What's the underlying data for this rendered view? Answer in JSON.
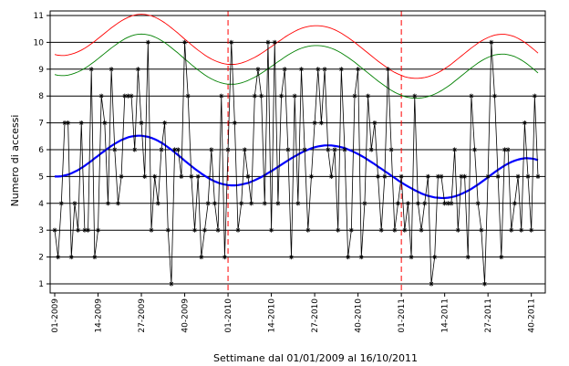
{
  "chart_data": {
    "type": "line",
    "xlabel": "Settimane dal 01/01/2009 al 16/10/2011",
    "ylabel": "Numero di accessi",
    "xlim": [
      1,
      146
    ],
    "ylim": [
      1,
      11
    ],
    "y_ticks": [
      1,
      2,
      3,
      4,
      5,
      6,
      7,
      8,
      9,
      10,
      11
    ],
    "grid": "horizontal",
    "x_ticks": [
      {
        "x": 1,
        "label": "01-2009"
      },
      {
        "x": 14,
        "label": "14-2009"
      },
      {
        "x": 27,
        "label": "27-2009"
      },
      {
        "x": 40,
        "label": "40-2009"
      },
      {
        "x": 53,
        "label": "01-2010"
      },
      {
        "x": 66,
        "label": "14-2010"
      },
      {
        "x": 79,
        "label": "27-2010"
      },
      {
        "x": 92,
        "label": "40-2010"
      },
      {
        "x": 105,
        "label": "01-2011"
      },
      {
        "x": 118,
        "label": "14-2011"
      },
      {
        "x": 131,
        "label": "27-2011"
      },
      {
        "x": 144,
        "label": "40-2011"
      }
    ],
    "year_separators": [
      53,
      105
    ],
    "series": [
      {
        "color": "#000000",
        "marker": "asterisk",
        "values": [
          3,
          2,
          4,
          7,
          7,
          2,
          4,
          3,
          7,
          3,
          3,
          9,
          2,
          3,
          8,
          7,
          4,
          9,
          6,
          4,
          5,
          8,
          8,
          8,
          6,
          9,
          7,
          5,
          10,
          3,
          5,
          4,
          6,
          7,
          3,
          1,
          6,
          6,
          5,
          10,
          8,
          5,
          3,
          5,
          2,
          3,
          4,
          6,
          4,
          3,
          8,
          2,
          6,
          10,
          7,
          3,
          4,
          6,
          5,
          4,
          8,
          9,
          8,
          4,
          10,
          3,
          10,
          4,
          8,
          9,
          6,
          2,
          8,
          4,
          9,
          6,
          3,
          5,
          7,
          9,
          7,
          9,
          6,
          5,
          6,
          3,
          9,
          6,
          2,
          3,
          8,
          9,
          2,
          4,
          8,
          6,
          7,
          5,
          3,
          5,
          9,
          6,
          3,
          4,
          5,
          3,
          4,
          2,
          8,
          4,
          3,
          4,
          5,
          1,
          2,
          5,
          5,
          4,
          4,
          4,
          6,
          3,
          5,
          5,
          2,
          8,
          6,
          4,
          3,
          1,
          5,
          10,
          8,
          5,
          2,
          6,
          6,
          3,
          4,
          5,
          3,
          7,
          5,
          3,
          8,
          5
        ]
      },
      {
        "color": "#0000ff",
        "values": [
          5.0,
          5.0,
          5.01,
          5.04,
          5.07,
          5.12,
          5.18,
          5.24,
          5.32,
          5.4,
          5.49,
          5.58,
          5.68,
          5.77,
          5.87,
          5.96,
          6.05,
          6.14,
          6.22,
          6.29,
          6.36,
          6.41,
          6.46,
          6.49,
          6.51,
          6.52,
          6.52,
          6.5,
          6.48,
          6.44,
          6.39,
          6.33,
          6.26,
          6.18,
          6.09,
          6.0,
          5.9,
          5.8,
          5.7,
          5.59,
          5.49,
          5.39,
          5.29,
          5.2,
          5.11,
          5.03,
          4.95,
          4.88,
          4.82,
          4.77,
          4.73,
          4.7,
          4.68,
          4.67,
          4.67,
          4.68,
          4.7,
          4.73,
          4.76,
          4.81,
          4.86,
          4.92,
          4.98,
          5.05,
          5.13,
          5.2,
          5.28,
          5.36,
          5.44,
          5.52,
          5.6,
          5.68,
          5.75,
          5.82,
          5.89,
          5.95,
          6.0,
          6.05,
          6.09,
          6.12,
          6.14,
          6.16,
          6.16,
          6.16,
          6.14,
          6.12,
          6.09,
          6.06,
          6.01,
          5.96,
          5.9,
          5.84,
          5.77,
          5.7,
          5.62,
          5.54,
          5.46,
          5.37,
          5.29,
          5.2,
          5.12,
          5.03,
          4.95,
          4.86,
          4.78,
          4.7,
          4.63,
          4.56,
          4.49,
          4.43,
          4.37,
          4.32,
          4.28,
          4.25,
          4.22,
          4.21,
          4.2,
          4.2,
          4.21,
          4.23,
          4.26,
          4.3,
          4.35,
          4.41,
          4.47,
          4.54,
          4.62,
          4.7,
          4.79,
          4.88,
          4.97,
          5.07,
          5.16,
          5.25,
          5.33,
          5.41,
          5.48,
          5.54,
          5.59,
          5.63,
          5.66,
          5.68,
          5.68,
          5.67,
          5.65,
          5.61
        ]
      },
      {
        "color": "#008000",
        "values": [
          8.8,
          8.77,
          8.76,
          8.76,
          8.78,
          8.81,
          8.85,
          8.9,
          8.96,
          9.03,
          9.11,
          9.2,
          9.29,
          9.39,
          9.49,
          9.59,
          9.69,
          9.79,
          9.88,
          9.97,
          10.05,
          10.13,
          10.19,
          10.24,
          10.28,
          10.3,
          10.31,
          10.3,
          10.28,
          10.25,
          10.2,
          10.14,
          10.07,
          9.99,
          9.9,
          9.8,
          9.7,
          9.6,
          9.49,
          9.38,
          9.28,
          9.17,
          9.07,
          8.97,
          8.88,
          8.79,
          8.71,
          8.64,
          8.58,
          8.53,
          8.49,
          8.46,
          8.44,
          8.44,
          8.44,
          8.46,
          8.49,
          8.53,
          8.58,
          8.64,
          8.7,
          8.77,
          8.85,
          8.93,
          9.02,
          9.1,
          9.19,
          9.28,
          9.36,
          9.45,
          9.53,
          9.6,
          9.67,
          9.73,
          9.78,
          9.82,
          9.85,
          9.87,
          9.88,
          9.88,
          9.87,
          9.85,
          9.82,
          9.78,
          9.73,
          9.67,
          9.6,
          9.52,
          9.44,
          9.35,
          9.26,
          9.16,
          9.06,
          8.96,
          8.86,
          8.76,
          8.66,
          8.56,
          8.47,
          8.38,
          8.29,
          8.21,
          8.14,
          8.08,
          8.03,
          7.98,
          7.95,
          7.93,
          7.92,
          7.92,
          7.93,
          7.95,
          7.98,
          8.02,
          8.07,
          8.13,
          8.2,
          8.28,
          8.36,
          8.45,
          8.55,
          8.65,
          8.75,
          8.85,
          8.95,
          9.05,
          9.14,
          9.23,
          9.31,
          9.38,
          9.44,
          9.49,
          9.53,
          9.55,
          9.56,
          9.56,
          9.54,
          9.51,
          9.47,
          9.41,
          9.34,
          9.26,
          9.17,
          9.07,
          8.97,
          8.86
        ]
      },
      {
        "color": "#ff0000",
        "values": [
          9.55,
          9.52,
          9.51,
          9.51,
          9.53,
          9.56,
          9.6,
          9.65,
          9.71,
          9.78,
          9.86,
          9.95,
          10.04,
          10.14,
          10.24,
          10.34,
          10.44,
          10.54,
          10.63,
          10.72,
          10.8,
          10.87,
          10.93,
          10.98,
          11.02,
          11.04,
          11.05,
          11.04,
          11.02,
          10.99,
          10.94,
          10.88,
          10.81,
          10.73,
          10.64,
          10.54,
          10.44,
          10.34,
          10.23,
          10.12,
          10.02,
          9.91,
          9.81,
          9.71,
          9.62,
          9.53,
          9.45,
          9.38,
          9.32,
          9.27,
          9.23,
          9.2,
          9.18,
          9.18,
          9.18,
          9.2,
          9.23,
          9.27,
          9.32,
          9.38,
          9.44,
          9.51,
          9.59,
          9.67,
          9.76,
          9.84,
          9.93,
          10.02,
          10.1,
          10.19,
          10.27,
          10.34,
          10.41,
          10.47,
          10.52,
          10.56,
          10.59,
          10.61,
          10.62,
          10.62,
          10.61,
          10.59,
          10.56,
          10.52,
          10.47,
          10.41,
          10.34,
          10.26,
          10.18,
          10.09,
          10.0,
          9.9,
          9.8,
          9.7,
          9.6,
          9.5,
          9.4,
          9.3,
          9.21,
          9.12,
          9.03,
          8.95,
          8.88,
          8.82,
          8.77,
          8.72,
          8.69,
          8.67,
          8.66,
          8.66,
          8.67,
          8.69,
          8.72,
          8.76,
          8.81,
          8.87,
          8.94,
          9.02,
          9.1,
          9.19,
          9.29,
          9.39,
          9.49,
          9.59,
          9.69,
          9.79,
          9.88,
          9.97,
          10.05,
          10.12,
          10.18,
          10.23,
          10.27,
          10.29,
          10.3,
          10.3,
          10.28,
          10.25,
          10.21,
          10.15,
          10.08,
          10.0,
          9.91,
          9.81,
          9.71,
          9.6
        ]
      }
    ]
  }
}
